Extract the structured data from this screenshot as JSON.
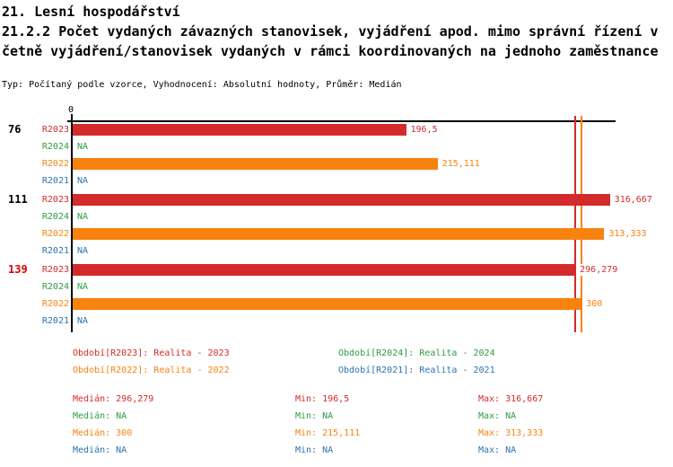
{
  "header": {
    "title_line1": "21. Lesní hospodářství",
    "title_line2": "21.2.2 Počet vydaných závazných stanovisek, vyjádření apod. mimo správní řízení v",
    "title_line3": "četně vyjádření/stanovisek vydaných v rámci koordinovaných na jednoho zaměstnance",
    "subtitle": "Typ: Počítaný podle vzorce, Vyhodnocení: Absolutní hodnoty, Průměr: Medián"
  },
  "colors": {
    "R2023": "#d32b2b",
    "R2024": "#2e9b44",
    "R2022": "#f8820e",
    "R2021": "#2d73af",
    "group_highlight": "#dd0000",
    "group_normal": "#000000",
    "axis": "#000000"
  },
  "chart_data": {
    "type": "bar",
    "orientation": "horizontal",
    "title": "21.2.2 Počet vydaných závazných stanovisek, vyjádření apod. mimo správní řízení včetně vyjádření/stanovisek vydaných v rámci koordinovaných na jednoho zaměstnance",
    "xlabel": "",
    "ylabel": "",
    "xlim": [
      0,
      320
    ],
    "x_tick_labels": [
      "0"
    ],
    "grid": false,
    "legend_position": "bottom",
    "series_order": [
      "R2023",
      "R2024",
      "R2022",
      "R2021"
    ],
    "na_text": "NA",
    "groups": [
      {
        "label": "76",
        "highlight": false,
        "bars": [
          {
            "series": "R2023",
            "value": 196.5,
            "display": "196,5"
          },
          {
            "series": "R2024",
            "value": null,
            "display": "NA"
          },
          {
            "series": "R2022",
            "value": 215.111,
            "display": "215,111"
          },
          {
            "series": "R2021",
            "value": null,
            "display": "NA"
          }
        ]
      },
      {
        "label": "111",
        "highlight": false,
        "bars": [
          {
            "series": "R2023",
            "value": 316.667,
            "display": "316,667"
          },
          {
            "series": "R2024",
            "value": null,
            "display": "NA"
          },
          {
            "series": "R2022",
            "value": 313.333,
            "display": "313,333"
          },
          {
            "series": "R2021",
            "value": null,
            "display": "NA"
          }
        ]
      },
      {
        "label": "139",
        "highlight": true,
        "bars": [
          {
            "series": "R2023",
            "value": 296.279,
            "display": "296,279"
          },
          {
            "series": "R2024",
            "value": null,
            "display": "NA"
          },
          {
            "series": "R2022",
            "value": 300,
            "display": "300"
          },
          {
            "series": "R2021",
            "value": null,
            "display": "NA"
          }
        ]
      }
    ],
    "median_lines": [
      {
        "series": "R2023",
        "value": 296.279
      },
      {
        "series": "R2022",
        "value": 300
      }
    ]
  },
  "legend": {
    "items": [
      {
        "series": "R2023",
        "label": "Období[R2023]: Realita - 2023"
      },
      {
        "series": "R2024",
        "label": "Období[R2024]: Realita - 2024"
      },
      {
        "series": "R2022",
        "label": "Období[R2022]: Realita - 2022"
      },
      {
        "series": "R2021",
        "label": "Období[R2021]: Realita - 2021"
      }
    ]
  },
  "stats": {
    "rows": [
      {
        "series": "R2023",
        "median": "Medián: 296,279",
        "min": "Min: 196,5",
        "max": "Max: 316,667"
      },
      {
        "series": "R2024",
        "median": "Medián: NA",
        "min": "Min: NA",
        "max": "Max: NA"
      },
      {
        "series": "R2022",
        "median": "Medián: 300",
        "min": "Min: 215,111",
        "max": "Max: 313,333"
      },
      {
        "series": "R2021",
        "median": "Medián: NA",
        "min": "Min: NA",
        "max": "Max: NA"
      }
    ]
  }
}
